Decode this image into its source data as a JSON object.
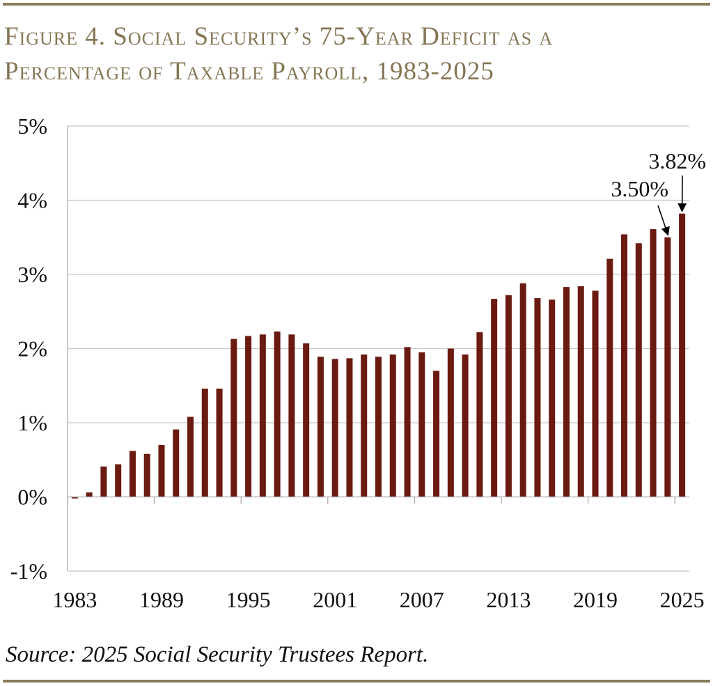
{
  "title_line1": "Figure 4. Social Security’s 75-Year Deficit as a",
  "title_line2": "Percentage of Taxable Payroll, 1983-2025",
  "source": "Source: 2025 Social Security Trustees Report.",
  "colors": {
    "bar": "#6b1a10",
    "title": "#857554",
    "grid": "#c8c8c8",
    "rule": "#8a7b5c"
  },
  "chart_data": {
    "type": "bar",
    "title": "Figure 4. Social Security’s 75-Year Deficit as a Percentage of Taxable Payroll, 1983-2025",
    "xlabel": "",
    "ylabel": "",
    "ylim": [
      -1,
      5
    ],
    "yticks": [
      "-1%",
      "0%",
      "1%",
      "2%",
      "3%",
      "4%",
      "5%"
    ],
    "xtick_labels": [
      "1983",
      "1989",
      "1995",
      "2001",
      "2007",
      "2013",
      "2019",
      "2025"
    ],
    "grid": true,
    "categories": [
      1983,
      1984,
      1985,
      1986,
      1987,
      1988,
      1989,
      1990,
      1991,
      1992,
      1993,
      1994,
      1995,
      1996,
      1997,
      1998,
      1999,
      2000,
      2001,
      2002,
      2003,
      2004,
      2005,
      2006,
      2007,
      2008,
      2009,
      2010,
      2011,
      2012,
      2013,
      2014,
      2015,
      2016,
      2017,
      2018,
      2019,
      2020,
      2021,
      2022,
      2023,
      2024,
      2025
    ],
    "values": [
      -0.02,
      0.06,
      0.41,
      0.44,
      0.62,
      0.58,
      0.7,
      0.91,
      1.08,
      1.46,
      1.46,
      2.13,
      2.17,
      2.19,
      2.23,
      2.19,
      2.07,
      1.89,
      1.86,
      1.87,
      1.92,
      1.89,
      1.92,
      2.02,
      1.95,
      1.7,
      2.0,
      1.92,
      2.22,
      2.67,
      2.72,
      2.88,
      2.68,
      2.66,
      2.83,
      2.84,
      2.78,
      3.21,
      3.54,
      3.42,
      3.61,
      3.5,
      3.82
    ],
    "annotations": [
      {
        "year": 2024,
        "text": "3.50%"
      },
      {
        "year": 2025,
        "text": "3.82%"
      }
    ]
  }
}
